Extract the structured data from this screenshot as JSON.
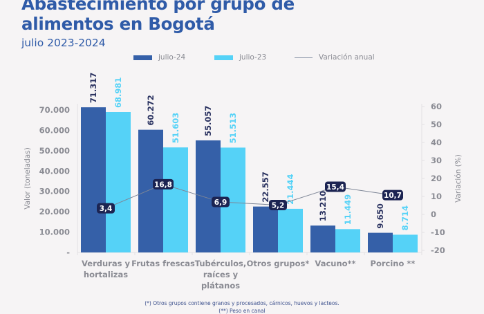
{
  "header": {
    "title_line1": "Abastecimiento por grupo de",
    "title_line2": "alimentos en Bogotá",
    "subtitle": "julio 2023-2024"
  },
  "legend": {
    "series1": "julio-24",
    "series2": "julio-23",
    "line": "Variación anual"
  },
  "colors": {
    "julio24": "#3560a8",
    "julio23": "#55d2f7",
    "line": "#7d8596",
    "label_badge": "#1c2452",
    "axis_text": "#8a8b93"
  },
  "footnotes": [
    "(*) Otros grupos contiene granos y procesados, cárnicos, huevos y lacteos.",
    "(**) Peso en canal"
  ],
  "chart_data": {
    "type": "bar",
    "title": "Abastecimiento por grupo de alimentos en Bogotá",
    "subtitle": "julio 2023-2024",
    "categories": [
      "Verduras y hortalizas",
      "Frutas frescas",
      "Tubérculos, raíces y plátanos",
      "Otros grupos*",
      "Vacuno**",
      "Porcino **"
    ],
    "category_lines": [
      [
        "Verduras y",
        "hortalizas"
      ],
      [
        "Frutas frescas"
      ],
      [
        "Tubérculos,",
        "raíces y",
        "plátanos"
      ],
      [
        "Otros grupos*"
      ],
      [
        "Vacuno**"
      ],
      [
        "Porcino **"
      ]
    ],
    "series": [
      {
        "name": "julio-24",
        "type": "bar",
        "axis": "left",
        "values": [
          71317,
          60272,
          55057,
          22557,
          13210,
          9650
        ],
        "labels": [
          "71.317",
          "60.272",
          "55.057",
          "22.557",
          "13.210",
          "9.650"
        ]
      },
      {
        "name": "julio-23",
        "type": "bar",
        "axis": "left",
        "values": [
          68981,
          51603,
          51513,
          21444,
          11449,
          8714
        ],
        "labels": [
          "68.981",
          "51.603",
          "51.513",
          "21.444",
          "11.449",
          "8.714"
        ]
      },
      {
        "name": "Variación anual",
        "type": "line",
        "axis": "right",
        "values": [
          3.4,
          16.8,
          6.9,
          5.2,
          15.4,
          10.7
        ],
        "labels": [
          "3,4",
          "16,8",
          "6,9",
          "5,2",
          "15,4",
          "10,7"
        ]
      }
    ],
    "ylabel": "Valor (toneladas)",
    "y2label": "Variación (%)",
    "ylim": [
      0,
      70000
    ],
    "yticks": [
      0,
      10000,
      20000,
      30000,
      40000,
      50000,
      60000,
      70000
    ],
    "ytick_labels": [
      "-",
      "10.000",
      "20.000",
      "30.000",
      "40.000",
      "50.000",
      "60.000",
      "70.000"
    ],
    "y2lim": [
      -20,
      60
    ],
    "y2ticks": [
      -20,
      -10,
      0,
      10,
      20,
      30,
      40,
      50,
      60
    ],
    "y2tick_labels": [
      "-20",
      "-10",
      "0",
      "10",
      "20",
      "30",
      "40",
      "50",
      "60"
    ],
    "grid": false,
    "legend_position": "top"
  }
}
